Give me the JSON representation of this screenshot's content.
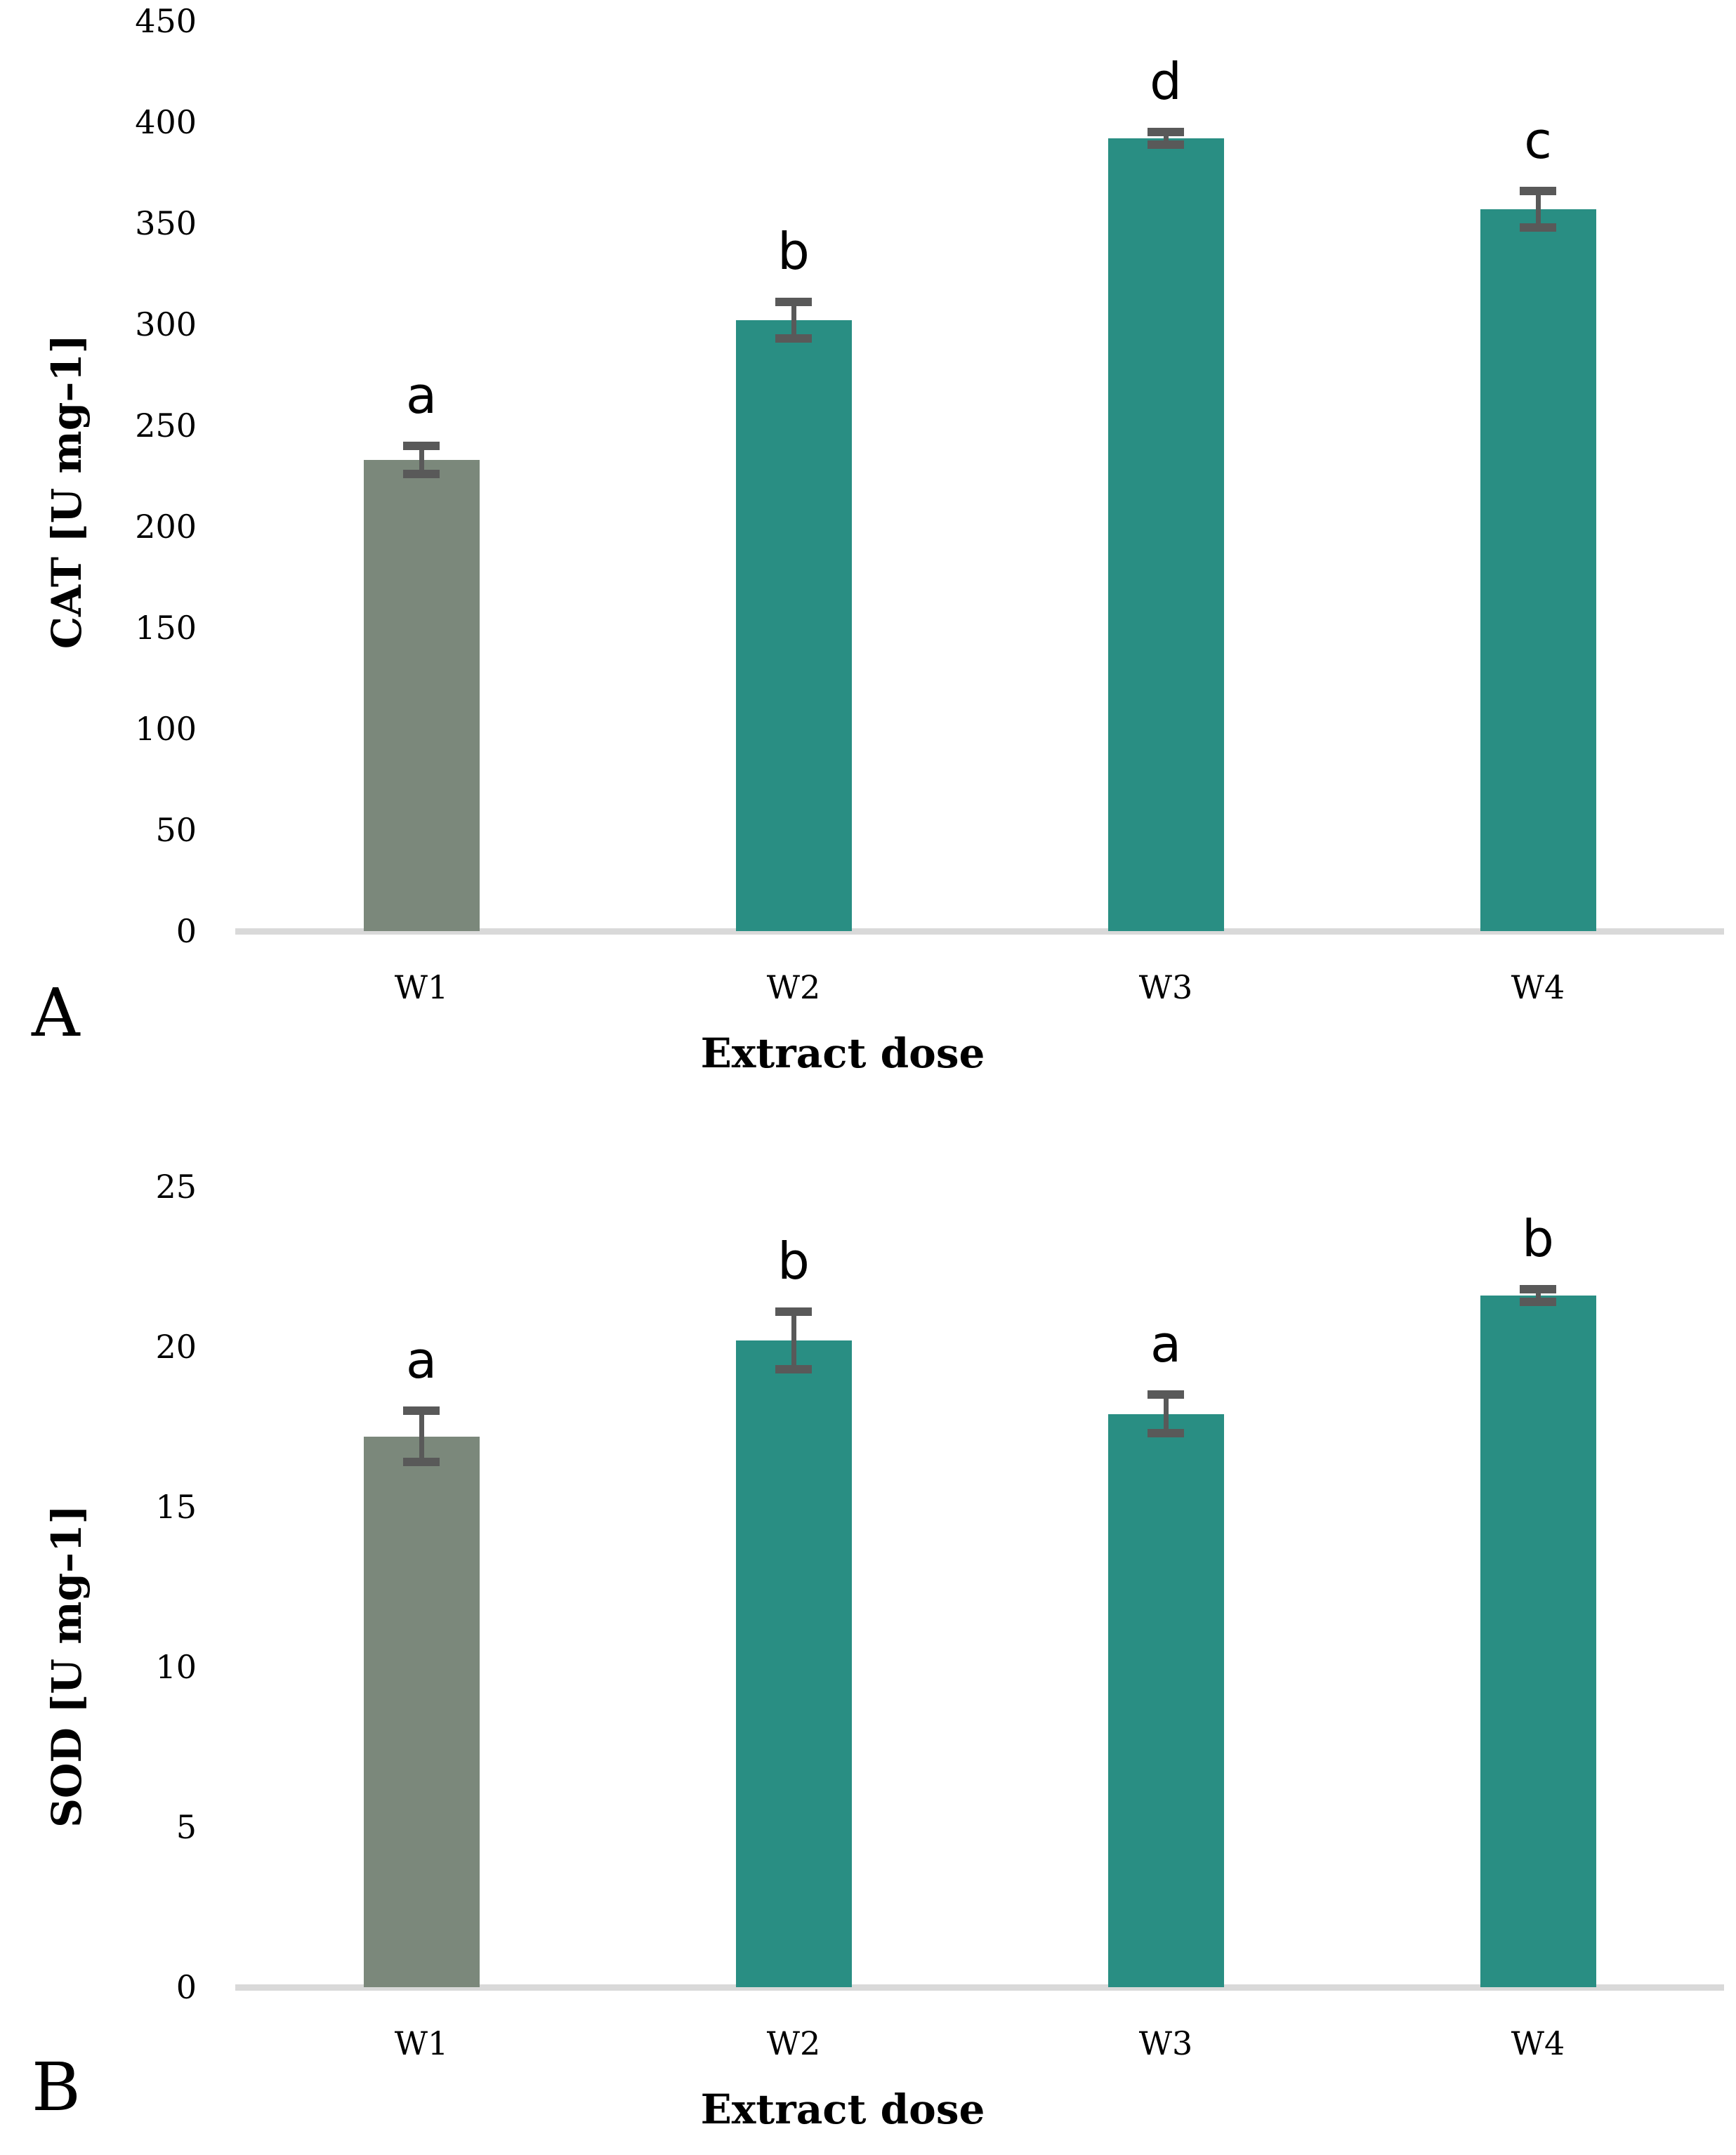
{
  "colors": {
    "control_bar": "#7B887B",
    "treatment_bar": "#298E83",
    "error_bar": "#595959",
    "axis_line": "#D9D9D9",
    "text": "#000000"
  },
  "chart_data": [
    {
      "type": "bar",
      "panel_letter": "A",
      "title": "",
      "ylabel": "CAT [U mg–1]",
      "xlabel": "Extract dose",
      "categories": [
        "W1",
        "W2",
        "W3",
        "W4"
      ],
      "values": [
        233,
        302,
        392,
        357
      ],
      "errors": [
        7,
        9,
        3,
        9
      ],
      "sig_letters": [
        "a",
        "b",
        "d",
        "c"
      ],
      "ylim": [
        0,
        450
      ],
      "yticks": [
        0,
        50,
        100,
        150,
        200,
        250,
        300,
        350,
        400,
        450
      ],
      "bar_colors": [
        "#7B887B",
        "#298E83",
        "#298E83",
        "#298E83"
      ],
      "grid": false,
      "legend": null
    },
    {
      "type": "bar",
      "panel_letter": "B",
      "title": "",
      "ylabel": "SOD [U mg–1]",
      "xlabel": "Extract dose",
      "categories": [
        "W1",
        "W2",
        "W3",
        "W4"
      ],
      "values": [
        17.2,
        20.2,
        17.9,
        21.6
      ],
      "errors": [
        0.8,
        0.9,
        0.6,
        0.2
      ],
      "sig_letters": [
        "a",
        "b",
        "a",
        "b"
      ],
      "ylim": [
        0,
        25
      ],
      "yticks": [
        0,
        5,
        10,
        15,
        20,
        25
      ],
      "bar_colors": [
        "#7B887B",
        "#298E83",
        "#298E83",
        "#298E83"
      ],
      "grid": false,
      "legend": null
    }
  ]
}
